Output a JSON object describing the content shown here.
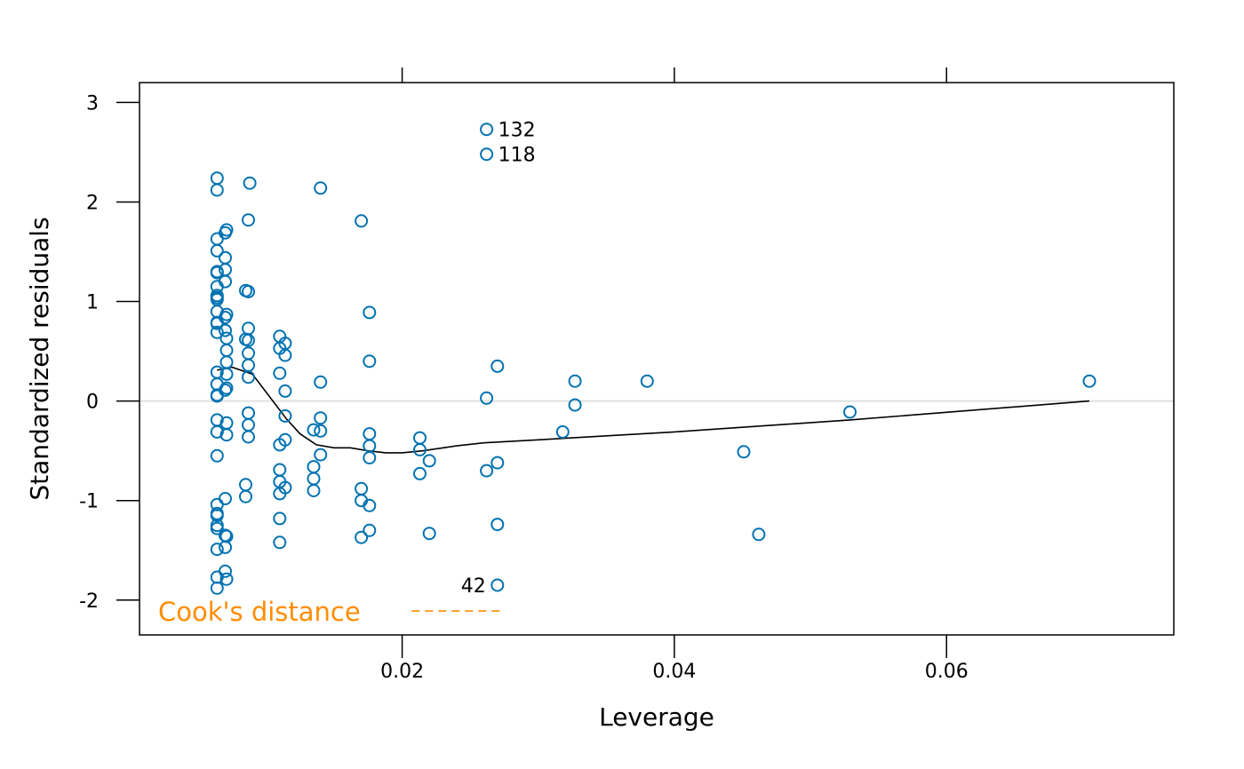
{
  "chart_data": {
    "type": "scatter",
    "title": "",
    "xlabel": "Leverage",
    "ylabel": "Standardized residuals",
    "xlim": [
      0.0007,
      0.0767
    ],
    "ylim": [
      -2.35,
      3.2
    ],
    "x_ticks": [
      0.02,
      0.04,
      0.06
    ],
    "x_tick_labels": [
      "0.02",
      "0.04",
      "0.06"
    ],
    "y_ticks": [
      -2,
      -1,
      0,
      1,
      2,
      3
    ],
    "y_tick_labels": [
      "-2",
      "-1",
      "0",
      "1",
      "2",
      "3"
    ],
    "x_ticks_top": [
      0.02,
      0.04,
      0.06
    ],
    "grid": false,
    "reference_line_y": 0,
    "colors": {
      "points": "#0072b2",
      "smooth": "#000000",
      "reference": "#e0e0e0",
      "cooks": "#ff8c00"
    },
    "legend": {
      "label": "Cook's distance",
      "placement": "bottom-left",
      "line_style": "dashed"
    },
    "points": [
      [
        0.0064,
        2.24
      ],
      [
        0.0064,
        2.12
      ],
      [
        0.0064,
        1.63
      ],
      [
        0.0064,
        1.51
      ],
      [
        0.0064,
        1.3
      ],
      [
        0.0064,
        1.29
      ],
      [
        0.0064,
        1.15
      ],
      [
        0.0064,
        1.06
      ],
      [
        0.0064,
        1.04
      ],
      [
        0.0064,
        1.02
      ],
      [
        0.0064,
        0.9
      ],
      [
        0.0064,
        0.79
      ],
      [
        0.0064,
        0.78
      ],
      [
        0.0064,
        0.69
      ],
      [
        0.0064,
        0.29
      ],
      [
        0.0064,
        0.17
      ],
      [
        0.0064,
        0.06
      ],
      [
        0.0064,
        0.05
      ],
      [
        0.0064,
        -0.19
      ],
      [
        0.0064,
        -0.31
      ],
      [
        0.0064,
        -0.55
      ],
      [
        0.0064,
        -1.04
      ],
      [
        0.0064,
        -1.13
      ],
      [
        0.0064,
        -1.15
      ],
      [
        0.0064,
        -1.25
      ],
      [
        0.0064,
        -1.28
      ],
      [
        0.0064,
        -1.49
      ],
      [
        0.0064,
        -1.77
      ],
      [
        0.0064,
        -1.88
      ],
      [
        0.007,
        1.69
      ],
      [
        0.0071,
        1.72
      ],
      [
        0.007,
        1.44
      ],
      [
        0.007,
        1.32
      ],
      [
        0.007,
        1.2
      ],
      [
        0.007,
        0.84
      ],
      [
        0.0071,
        0.87
      ],
      [
        0.007,
        0.71
      ],
      [
        0.0071,
        0.63
      ],
      [
        0.0071,
        0.51
      ],
      [
        0.0071,
        0.39
      ],
      [
        0.0071,
        0.27
      ],
      [
        0.0071,
        0.13
      ],
      [
        0.007,
        0.11
      ],
      [
        0.0071,
        -0.22
      ],
      [
        0.0071,
        -0.34
      ],
      [
        0.007,
        -0.98
      ],
      [
        0.007,
        -1.35
      ],
      [
        0.0071,
        -1.36
      ],
      [
        0.007,
        -1.47
      ],
      [
        0.007,
        -1.71
      ],
      [
        0.0071,
        -1.79
      ],
      [
        0.0085,
        1.11
      ],
      [
        0.0087,
        1.1
      ],
      [
        0.0085,
        0.62
      ],
      [
        0.0085,
        -0.84
      ],
      [
        0.0085,
        -0.96
      ],
      [
        0.0088,
        2.19
      ],
      [
        0.0087,
        1.82
      ],
      [
        0.0087,
        0.73
      ],
      [
        0.0087,
        0.61
      ],
      [
        0.0087,
        0.48
      ],
      [
        0.0087,
        0.36
      ],
      [
        0.0087,
        0.24
      ],
      [
        0.0087,
        -0.12
      ],
      [
        0.0087,
        -0.24
      ],
      [
        0.0087,
        -0.36
      ],
      [
        0.011,
        0.65
      ],
      [
        0.011,
        0.53
      ],
      [
        0.011,
        0.28
      ],
      [
        0.011,
        -0.44
      ],
      [
        0.011,
        -0.69
      ],
      [
        0.011,
        -0.81
      ],
      [
        0.011,
        -0.93
      ],
      [
        0.011,
        -1.18
      ],
      [
        0.011,
        -1.42
      ],
      [
        0.0114,
        0.58
      ],
      [
        0.0114,
        0.46
      ],
      [
        0.0114,
        0.1
      ],
      [
        0.0114,
        -0.15
      ],
      [
        0.0114,
        -0.39
      ],
      [
        0.0114,
        -0.87
      ],
      [
        0.0135,
        -0.29
      ],
      [
        0.0135,
        -0.66
      ],
      [
        0.0135,
        -0.78
      ],
      [
        0.0135,
        -0.9
      ],
      [
        0.014,
        2.14
      ],
      [
        0.014,
        0.19
      ],
      [
        0.014,
        -0.17
      ],
      [
        0.014,
        -0.3
      ],
      [
        0.014,
        -0.54
      ],
      [
        0.017,
        1.81
      ],
      [
        0.017,
        -0.88
      ],
      [
        0.017,
        -1.0
      ],
      [
        0.017,
        -1.37
      ],
      [
        0.0176,
        0.89
      ],
      [
        0.0176,
        0.4
      ],
      [
        0.0176,
        -0.33
      ],
      [
        0.0176,
        -0.45
      ],
      [
        0.0176,
        -0.57
      ],
      [
        0.0176,
        -1.05
      ],
      [
        0.0176,
        -1.3
      ],
      [
        0.0213,
        -0.37
      ],
      [
        0.0213,
        -0.49
      ],
      [
        0.0213,
        -0.73
      ],
      [
        0.022,
        -0.6
      ],
      [
        0.022,
        -1.33
      ],
      [
        0.0262,
        2.73
      ],
      [
        0.0262,
        2.48
      ],
      [
        0.0262,
        0.03
      ],
      [
        0.0262,
        -0.7
      ],
      [
        0.027,
        0.35
      ],
      [
        0.027,
        -0.62
      ],
      [
        0.027,
        -1.24
      ],
      [
        0.027,
        -1.85
      ],
      [
        0.0318,
        -0.31
      ],
      [
        0.0327,
        0.2
      ],
      [
        0.0327,
        -0.04
      ],
      [
        0.038,
        0.2
      ],
      [
        0.0451,
        -0.51
      ],
      [
        0.0462,
        -1.34
      ],
      [
        0.0529,
        -0.11
      ],
      [
        0.0705,
        0.2
      ]
    ],
    "smooth_line": [
      [
        0.0064,
        0.31
      ],
      [
        0.0075,
        0.34
      ],
      [
        0.009,
        0.27
      ],
      [
        0.0105,
        0.0
      ],
      [
        0.0115,
        -0.18
      ],
      [
        0.0125,
        -0.33
      ],
      [
        0.0137,
        -0.44
      ],
      [
        0.015,
        -0.47
      ],
      [
        0.0162,
        -0.47
      ],
      [
        0.0175,
        -0.5
      ],
      [
        0.0188,
        -0.52
      ],
      [
        0.02,
        -0.52
      ],
      [
        0.0215,
        -0.5
      ],
      [
        0.024,
        -0.45
      ],
      [
        0.026,
        -0.42
      ],
      [
        0.03,
        -0.39
      ],
      [
        0.04,
        -0.31
      ],
      [
        0.0529,
        -0.19
      ],
      [
        0.0705,
        0.0
      ]
    ],
    "cooks_line": [
      [
        0.0207,
        -2.11
      ],
      [
        0.0273,
        -2.11
      ]
    ],
    "annotations": [
      {
        "text": "132",
        "x": 0.0262,
        "y": 2.73,
        "side": "right"
      },
      {
        "text": "118",
        "x": 0.0262,
        "y": 2.48,
        "side": "right"
      },
      {
        "text": "42",
        "x": 0.027,
        "y": -1.85,
        "side": "left"
      }
    ]
  }
}
